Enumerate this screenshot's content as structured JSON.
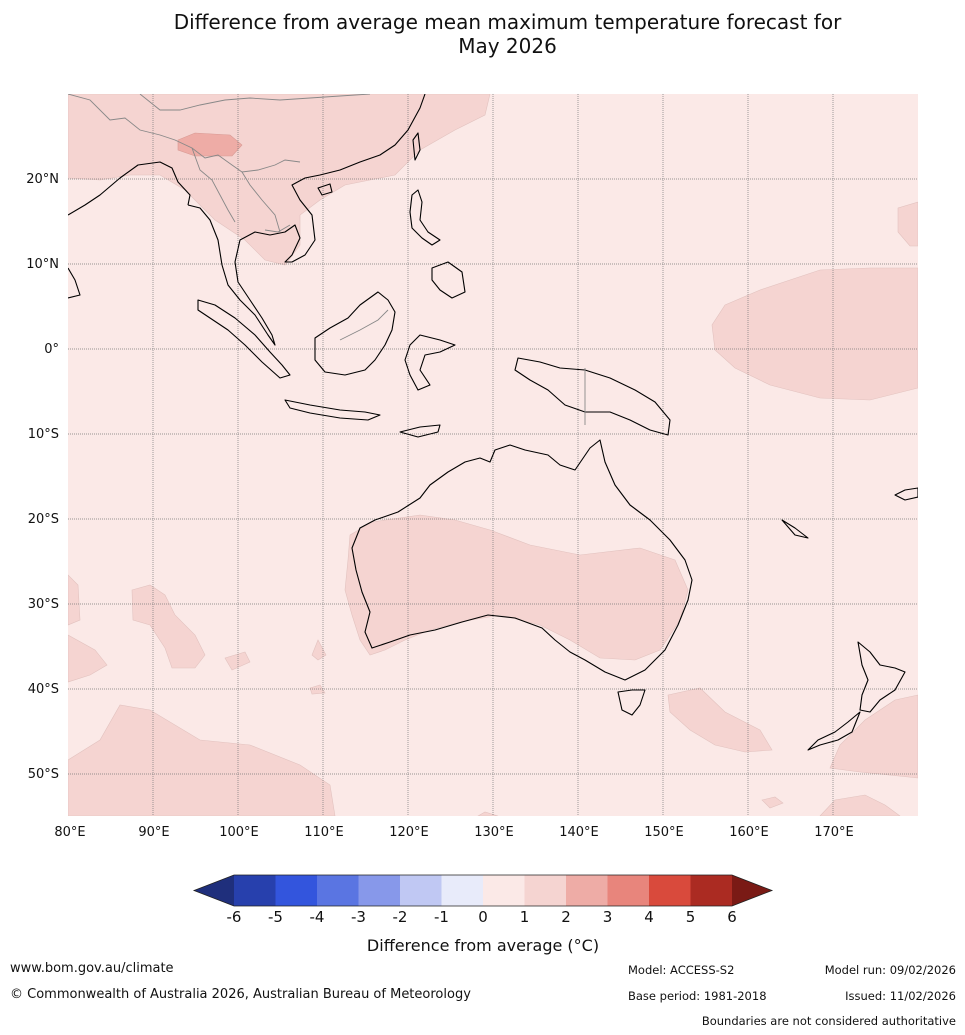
{
  "title": {
    "line1": "Difference from average mean maximum temperature forecast for",
    "line2": "May 2026"
  },
  "map": {
    "lon_labels": [
      "80°E",
      "90°E",
      "100°E",
      "110°E",
      "120°E",
      "130°E",
      "140°E",
      "150°E",
      "160°E",
      "170°E"
    ],
    "lat_labels": [
      "20°N",
      "10°N",
      "0°",
      "10°S",
      "20°S",
      "30°S",
      "40°S",
      "50°S"
    ],
    "extent": {
      "lon": [
        80,
        180
      ],
      "lat": [
        -55,
        30
      ]
    },
    "background_class_color": "#fbe9e7",
    "warm_class_color": "#f5d4d1",
    "hot_class_color": "#eeaca6"
  },
  "colorbar": {
    "ticks": [
      "-6",
      "-5",
      "-4",
      "-3",
      "-2",
      "-1",
      "0",
      "1",
      "2",
      "3",
      "4",
      "5",
      "6"
    ],
    "colors": [
      "#1f2f7c",
      "#2740ad",
      "#3355dd",
      "#5a75e2",
      "#8798ea",
      "#c0c8f3",
      "#e8ebfa",
      "#fbe9e7",
      "#f5d4d1",
      "#eeaca6",
      "#e8857c",
      "#d94a3c",
      "#ab2b22",
      "#7a1a15"
    ],
    "label": "Difference from average (°C)"
  },
  "footer": {
    "website": "www.bom.gov.au/climate",
    "copyright": "© Commonwealth of Australia 2026, Australian Bureau of Meteorology",
    "model": "Model: ACCESS-S2",
    "base_period": "Base period: 1981-2018",
    "model_run": "Model run: 09/02/2026",
    "issued": "Issued: 11/02/2026",
    "disclaimer": "Boundaries are not considered authoritative"
  }
}
